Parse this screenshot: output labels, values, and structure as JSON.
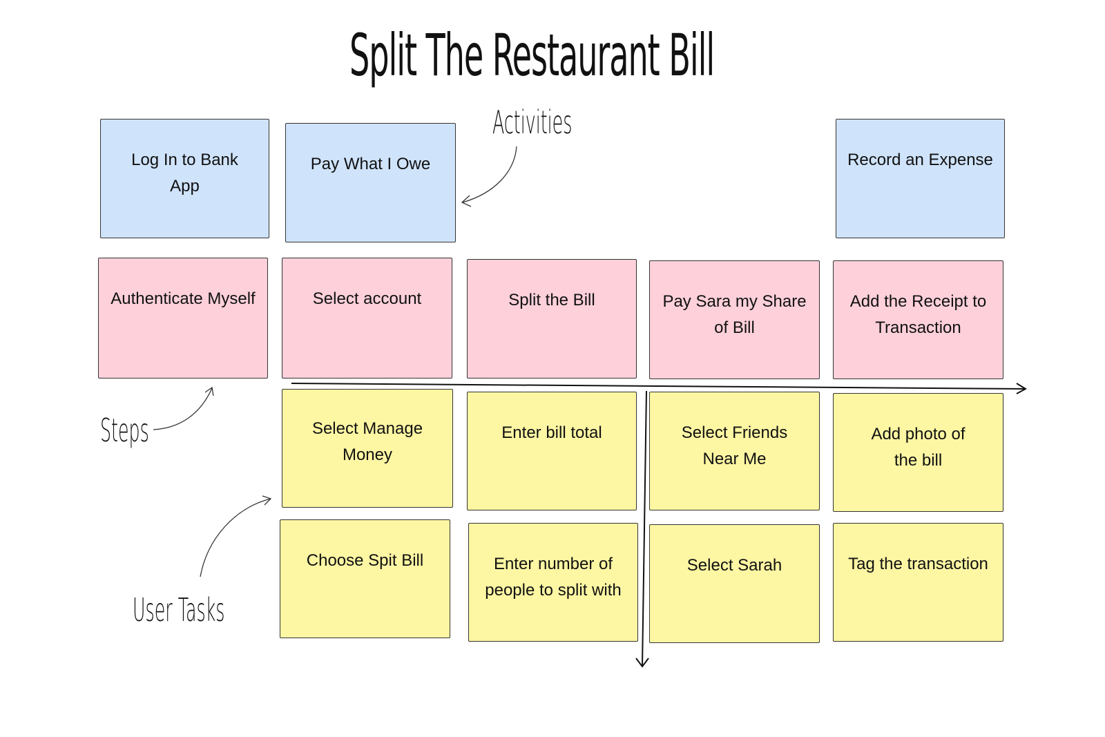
{
  "title": "Split The Restaurant Bill",
  "labels": {
    "activities": "Activities",
    "steps": "Steps",
    "user_tasks": "User Tasks"
  },
  "colors": {
    "activity": "#cfe3fb",
    "step": "#fdd0da",
    "task": "#fdf6a3"
  },
  "activities": [
    "Log In to Bank App",
    "Pay What I Owe",
    "Record an Expense"
  ],
  "steps": [
    "Authenticate Myself",
    "Select account",
    "Split the Bill",
    "Pay Sara my Share of Bill",
    "Add the Receipt to Transaction"
  ],
  "tasks_row1": [
    "Select Manage Money",
    "Enter bill total",
    "Select Friends Near Me",
    "Add photo of the bill"
  ],
  "tasks_row2": [
    "Choose Spit Bill",
    "Enter number of people to split with",
    "Select Sarah",
    "Tag the transaction"
  ]
}
